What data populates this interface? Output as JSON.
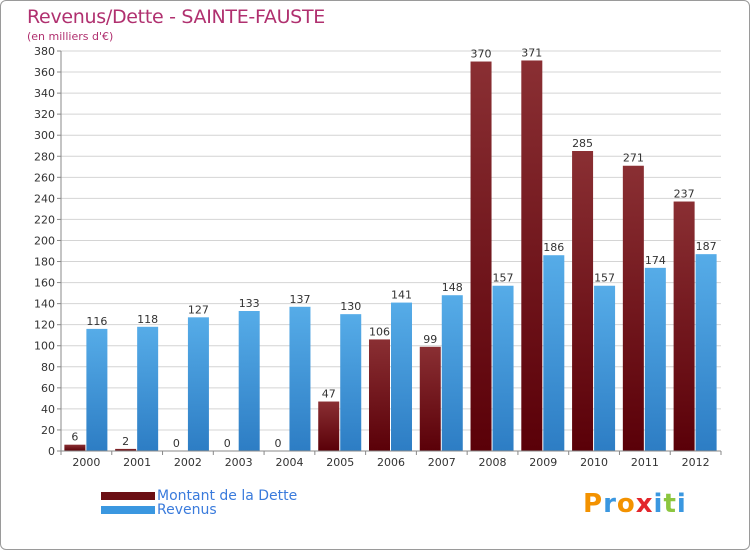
{
  "chart_data": {
    "type": "bar",
    "title": "Revenus/Dette - SAINTE-FAUSTE",
    "subtitle": "(en milliers d'€)",
    "categories": [
      "2000",
      "2001",
      "2002",
      "2003",
      "2004",
      "2005",
      "2006",
      "2007",
      "2008",
      "2009",
      "2010",
      "2011",
      "2012"
    ],
    "series": [
      {
        "name": "Montant de la Dette",
        "color": "#6b0f14",
        "values": [
          6,
          2,
          0,
          0,
          0,
          47,
          106,
          99,
          370,
          371,
          285,
          271,
          237
        ]
      },
      {
        "name": "Revenus",
        "color": "#3a97e0",
        "values": [
          116,
          118,
          127,
          133,
          137,
          130,
          141,
          148,
          157,
          186,
          157,
          174,
          187
        ]
      }
    ],
    "ylim": [
      0,
      380
    ],
    "ytick_step": 20,
    "grid": true,
    "legend_position": "bottom-left"
  },
  "logo": {
    "text": "Proxiti",
    "letters": [
      {
        "ch": "P",
        "color": "#f39200"
      },
      {
        "ch": "r",
        "color": "#3a97e0"
      },
      {
        "ch": "o",
        "color": "#f39200"
      },
      {
        "ch": "x",
        "color": "#e3262b"
      },
      {
        "ch": "i",
        "color": "#3a97e0"
      },
      {
        "ch": "t",
        "color": "#8cc63f"
      },
      {
        "ch": "i",
        "color": "#3a97e0"
      }
    ]
  }
}
